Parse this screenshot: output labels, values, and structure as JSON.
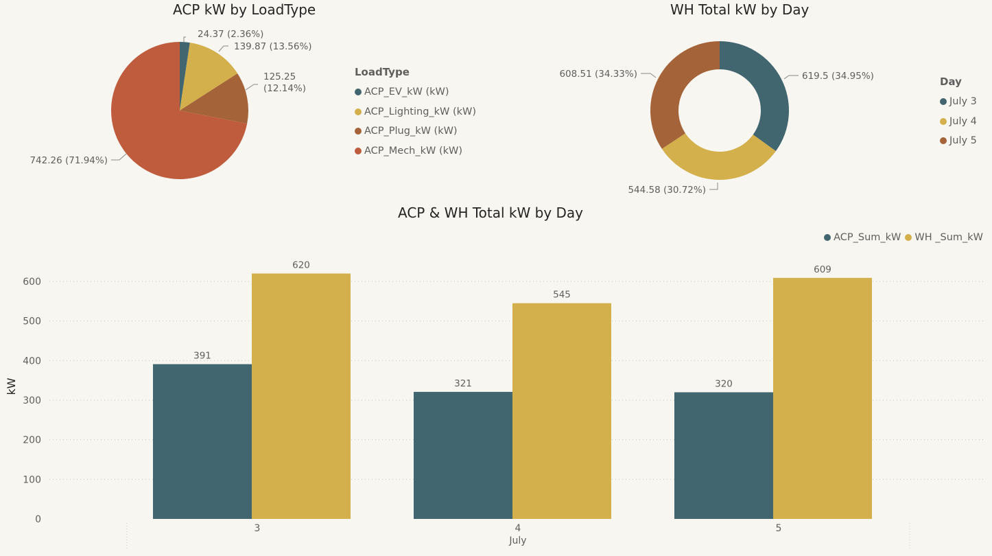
{
  "colors": {
    "teal": "#41666f",
    "gold": "#d3b04b",
    "brown": "#a46338",
    "orange_red": "#c05c3e",
    "background": "#f8f6f1"
  },
  "chart_data": [
    {
      "type": "pie",
      "title": "ACP kW by LoadType",
      "legend_title": "LoadType",
      "legend_placement": "right",
      "slices": [
        {
          "name": "ACP_EV_kW (kW)",
          "value": 24.37,
          "percent": "2.36%",
          "label": "24.37 (2.36%)",
          "color": "#41666f"
        },
        {
          "name": "ACP_Lighting_kW (kW)",
          "value": 139.87,
          "percent": "13.56%",
          "label": "139.87 (13.56%)",
          "color": "#d3b04b"
        },
        {
          "name": "ACP_Plug_kW (kW)",
          "value": 125.25,
          "percent": "12.14%",
          "label_lines": [
            "125.25",
            "(12.14%)"
          ],
          "color": "#a46338"
        },
        {
          "name": "ACP_Mech_kW (kW)",
          "value": 742.26,
          "percent": "71.94%",
          "label": "742.26 (71.94%)",
          "color": "#c05c3e"
        }
      ]
    },
    {
      "type": "pie",
      "subtype": "donut",
      "title": "WH Total kW by Day",
      "legend_title": "Day",
      "legend_placement": "right",
      "slices": [
        {
          "name": "July 3",
          "value": 619.5,
          "percent": "34.95%",
          "label": "619.5 (34.95%)",
          "color": "#41666f"
        },
        {
          "name": "July 4",
          "value": 544.58,
          "percent": "30.72%",
          "label": "544.58 (30.72%)",
          "color": "#d3b04b"
        },
        {
          "name": "July 5",
          "value": 608.51,
          "percent": "34.33%",
          "label": "608.51 (34.33%)",
          "color": "#a46338"
        }
      ]
    },
    {
      "type": "bar",
      "title": "ACP & WH Total kW by Day",
      "categories": [
        "3",
        "4",
        "5"
      ],
      "x_group_label": "July",
      "xlabel": "",
      "ylabel": "kW",
      "ylim": [
        0,
        650
      ],
      "yticks": [
        0,
        100,
        200,
        300,
        400,
        500,
        600
      ],
      "grid": true,
      "legend_placement": "top-right",
      "series": [
        {
          "name": "ACP_Sum_kW",
          "values": [
            391,
            321,
            320
          ],
          "labels": [
            "391",
            "321",
            "320"
          ],
          "color": "#41666f"
        },
        {
          "name": "WH _Sum_kW",
          "values": [
            620,
            545,
            609
          ],
          "labels": [
            "620",
            "545",
            "609"
          ],
          "color": "#d3b04b"
        }
      ]
    }
  ]
}
